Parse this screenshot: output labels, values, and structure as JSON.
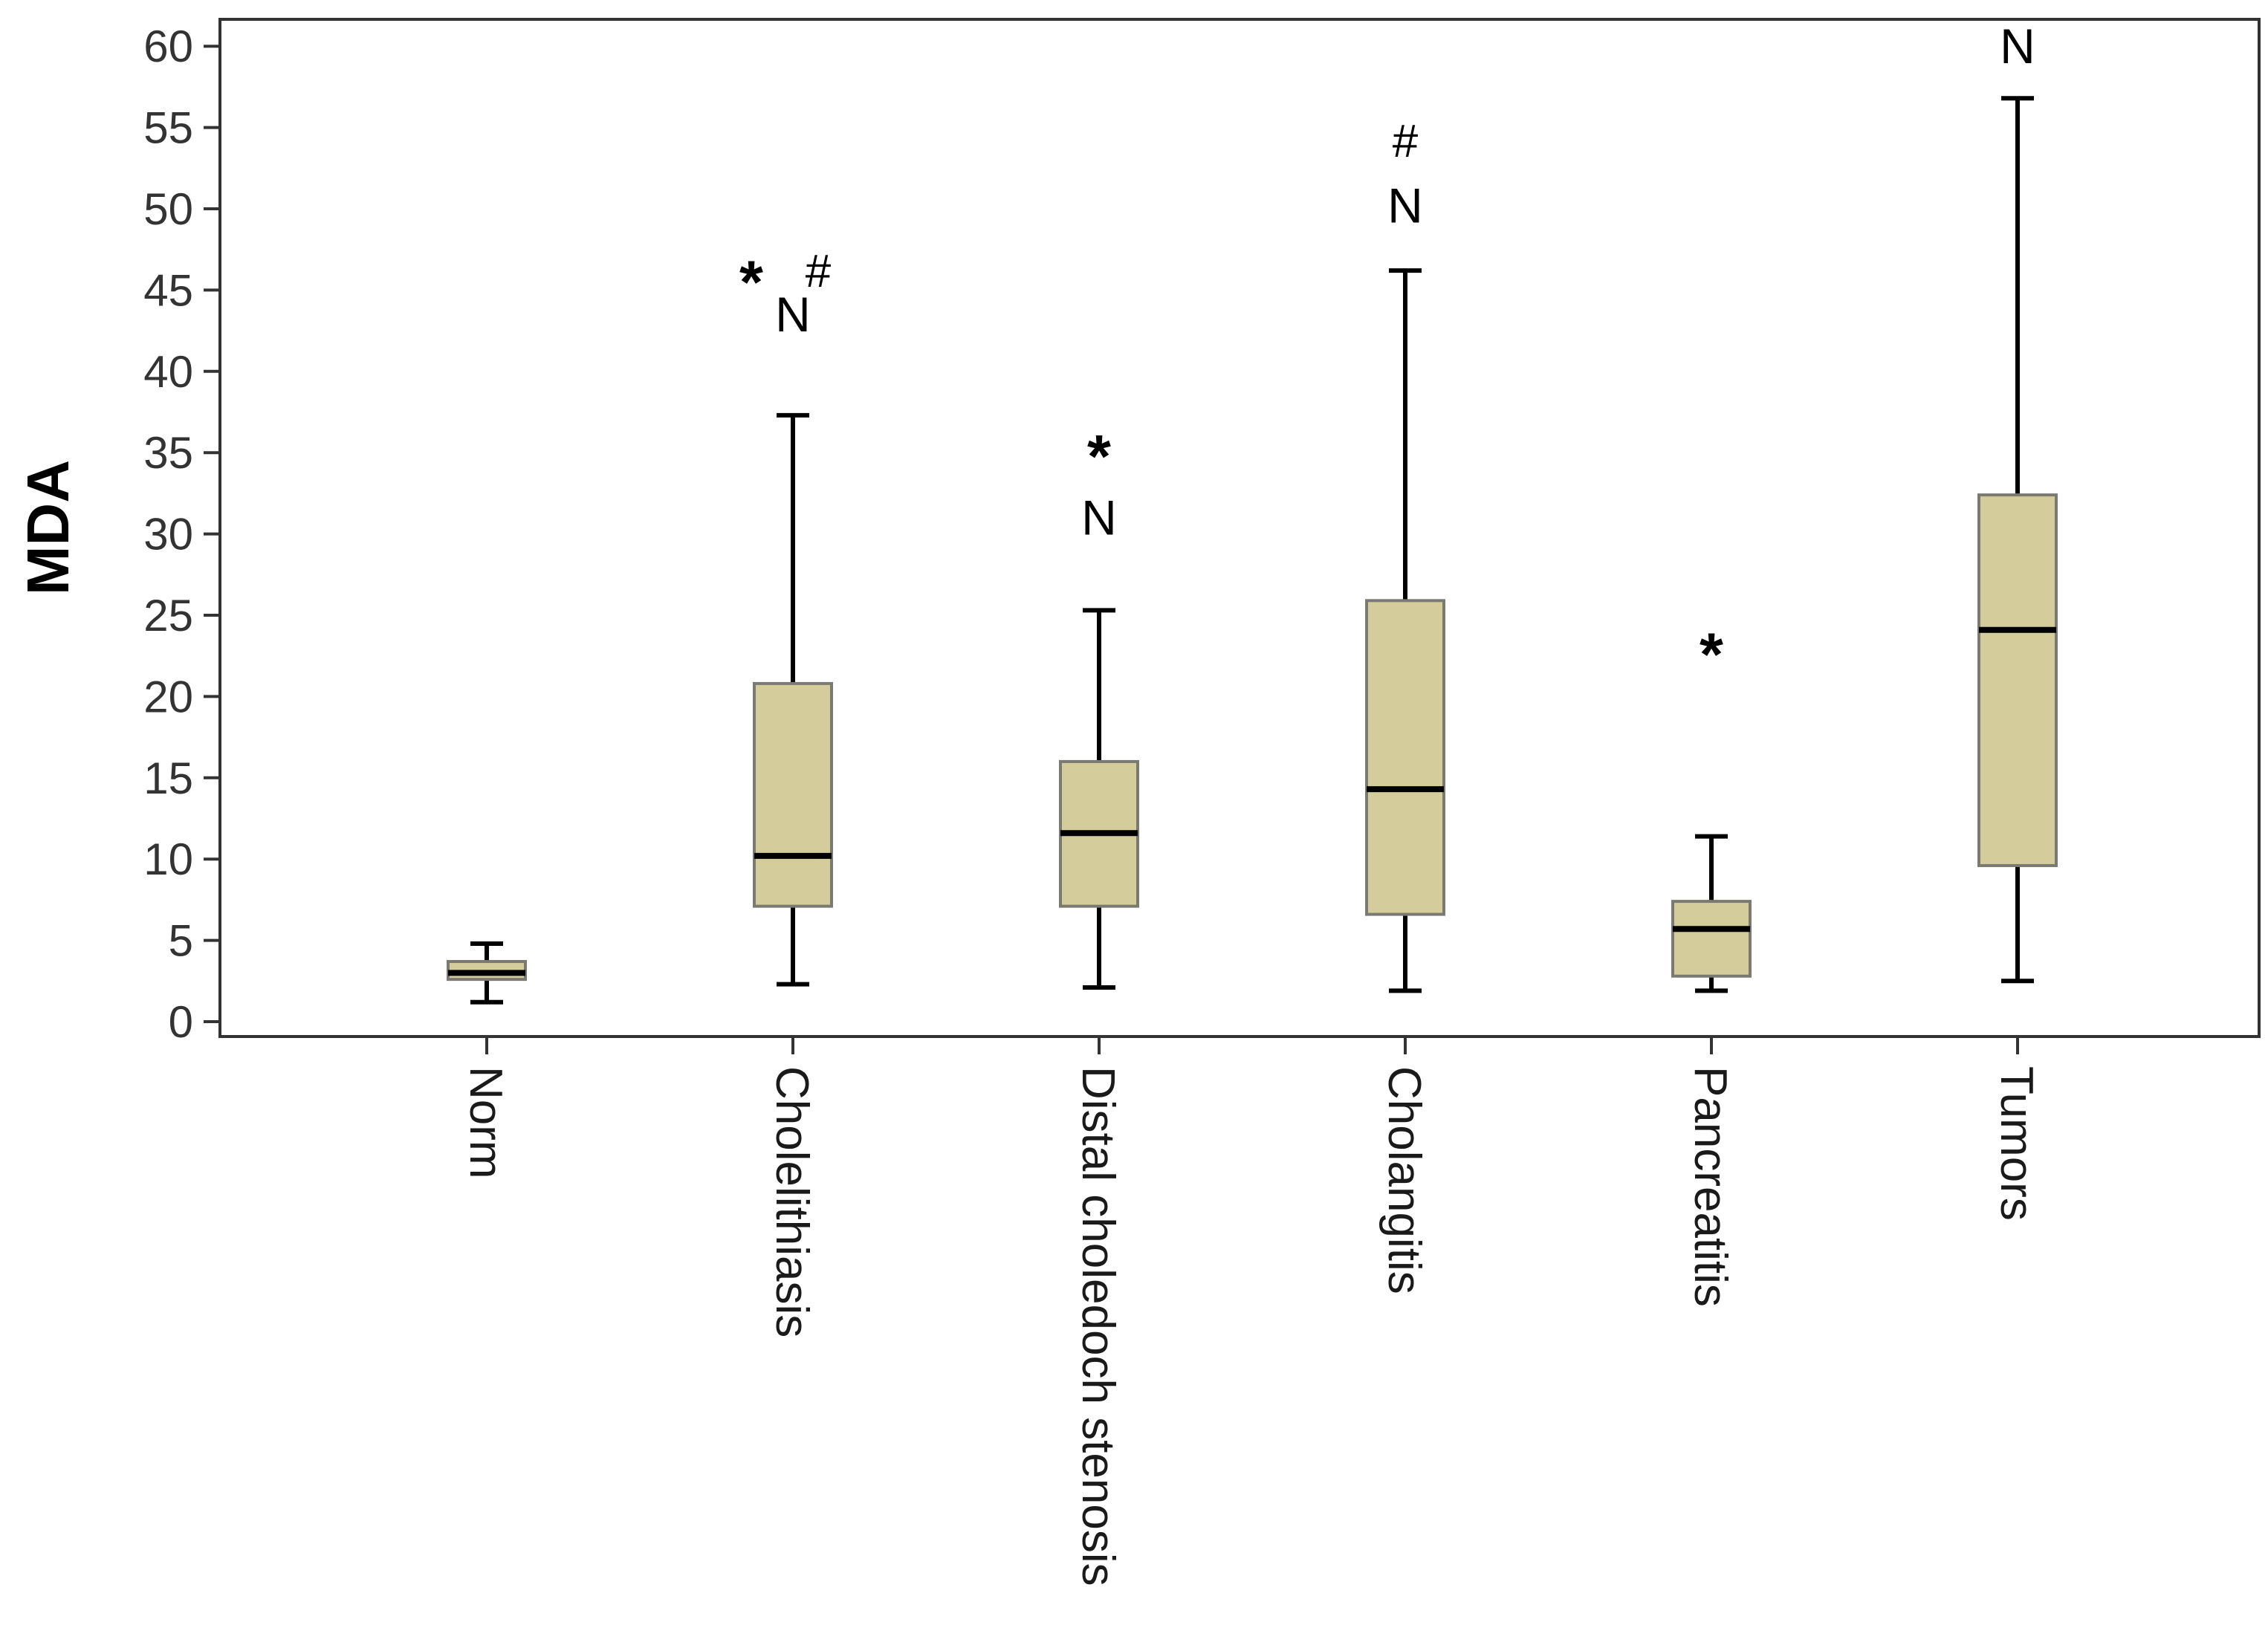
{
  "chart_data": {
    "type": "boxplot",
    "title": "",
    "xlabel": "",
    "ylabel": "MDA",
    "ylim": [
      0,
      61
    ],
    "yticks": [
      0,
      5,
      10,
      15,
      20,
      25,
      30,
      35,
      40,
      45,
      50,
      55,
      60
    ],
    "categories": [
      "Norm",
      "Cholelithiasis",
      "Distal choledoch stenosis",
      "Cholangitis",
      "Pancreatitis",
      "Tumors"
    ],
    "boxes": [
      {
        "category": "Norm",
        "whisker_low": 1.2,
        "q1": 2.6,
        "median": 3.0,
        "q3": 3.7,
        "whisker_high": 4.8,
        "annotations": []
      },
      {
        "category": "Cholelithiasis",
        "whisker_low": 2.3,
        "q1": 7.1,
        "median": 10.2,
        "q3": 20.8,
        "whisker_high": 37.3,
        "annotations": [
          {
            "text": "N",
            "value": 43.5
          },
          {
            "text": "*",
            "value": 46.2
          },
          {
            "text": "#",
            "value": 46.2
          }
        ]
      },
      {
        "category": "Distal choledoch stenosis",
        "whisker_low": 2.1,
        "q1": 7.1,
        "median": 11.6,
        "q3": 16.0,
        "whisker_high": 25.3,
        "annotations": [
          {
            "text": "N",
            "value": 31.0
          },
          {
            "text": "*",
            "value": 35.5
          }
        ]
      },
      {
        "category": "Cholangitis",
        "whisker_low": 1.9,
        "q1": 6.6,
        "median": 14.3,
        "q3": 25.9,
        "whisker_high": 46.2,
        "annotations": [
          {
            "text": "N",
            "value": 50.2
          },
          {
            "text": "#",
            "value": 54.2
          }
        ]
      },
      {
        "category": "Pancreatitis",
        "whisker_low": 1.9,
        "q1": 2.8,
        "median": 5.7,
        "q3": 7.4,
        "whisker_high": 11.4,
        "annotations": [
          {
            "text": "*",
            "value": 23.3
          }
        ]
      },
      {
        "category": "Tumors",
        "whisker_low": 2.5,
        "q1": 9.6,
        "median": 24.1,
        "q3": 32.4,
        "whisker_high": 56.8,
        "annotations": [
          {
            "text": "N",
            "value": 60.0
          }
        ]
      }
    ],
    "colors": {
      "box_fill": "#d4cd9b",
      "box_stroke": "#7a7a72",
      "line": "#000000",
      "axis": "#333333",
      "background": "#ffffff"
    }
  }
}
